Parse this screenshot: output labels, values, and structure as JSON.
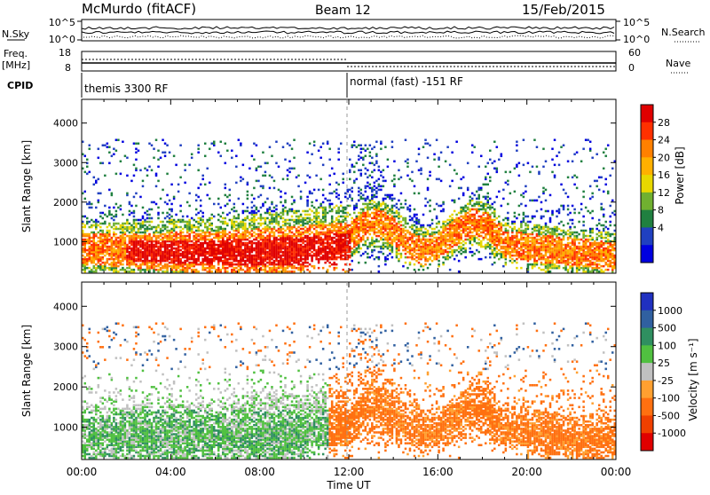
{
  "header": {
    "station": "McMurdo (fitACF)",
    "beam": "Beam 12",
    "date": "15/Feb/2015"
  },
  "summary_panels": {
    "nsky_label": "N.Sky",
    "nsky_ticks": [
      "10^5",
      "10^0"
    ],
    "nsearch_label": "N.Search",
    "nsearch_ticks": [
      "10^5",
      "10^0"
    ],
    "freq_label_1": "Freq.",
    "freq_label_2": "[MHz]",
    "freq_ticks": [
      "18",
      "8"
    ],
    "nave_label": "Nave",
    "nave_ticks": [
      "60",
      "0"
    ],
    "cpid_label": "CPID",
    "cpid_modes": [
      {
        "name": "themis 3300 RF",
        "start_hour": 0
      },
      {
        "name": "normal (fast) -151 RF",
        "start_hour": 12
      }
    ]
  },
  "chart_data": [
    {
      "type": "heatmap",
      "quantity": "power",
      "ylabel": "Slant Range [km]",
      "ylim": [
        200,
        4600
      ],
      "yticks": [
        1000,
        2000,
        3000,
        4000
      ],
      "xlim": [
        0,
        24
      ],
      "colorbar_label": "Power [dB]",
      "colorbar_ticks": [
        "28",
        "24",
        "20",
        "16",
        "12",
        "8",
        "4"
      ],
      "colorbar_colors": [
        "#e00000",
        "#ff3000",
        "#ff8000",
        "#ffb000",
        "#e8d800",
        "#70b030",
        "#208040",
        "#2040c0",
        "#0000e0"
      ]
    },
    {
      "type": "heatmap",
      "quantity": "velocity",
      "ylabel": "Slant Range [km]",
      "ylim": [
        200,
        4600
      ],
      "yticks": [
        1000,
        2000,
        3000,
        4000
      ],
      "xlim": [
        0,
        24
      ],
      "xlabel": "Time UT",
      "xticks": [
        "00:00",
        "04:00",
        "08:00",
        "12:00",
        "16:00",
        "20:00",
        "00:00"
      ],
      "colorbar_label": "Velocity [m s⁻¹]",
      "colorbar_ticks": [
        "1000",
        "500",
        "100",
        "25",
        "-25",
        "-100",
        "-500",
        "-1000"
      ],
      "colorbar_colors": [
        "#2030c0",
        "#3060a0",
        "#2f8f60",
        "#50c040",
        "#c0c0c0",
        "#ffa030",
        "#ff7010",
        "#f04000",
        "#e00000"
      ]
    }
  ]
}
